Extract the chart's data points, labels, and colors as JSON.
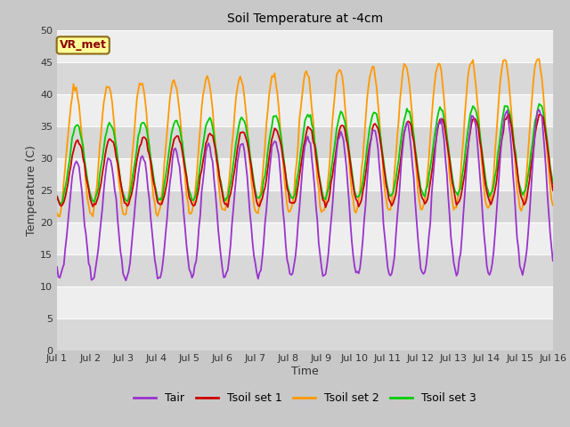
{
  "title": "Soil Temperature at -4cm",
  "xlabel": "Time",
  "ylabel": "Temperature (C)",
  "ylim": [
    0,
    50
  ],
  "yticks": [
    0,
    5,
    10,
    15,
    20,
    25,
    30,
    35,
    40,
    45,
    50
  ],
  "annotation_label": "VR_met",
  "line_colors": {
    "Tair": "#9933cc",
    "Tsoil set 1": "#cc0000",
    "Tsoil set 2": "#ff9900",
    "Tsoil set 3": "#00cc00"
  },
  "line_width": 1.3,
  "legend_entries": [
    "Tair",
    "Tsoil set 1",
    "Tsoil set 2",
    "Tsoil set 3"
  ],
  "fig_bg": "#c8c8c8",
  "plot_bg": "#e8e8e8",
  "band_dark": "#d8d8d8",
  "band_light": "#eeeeee"
}
